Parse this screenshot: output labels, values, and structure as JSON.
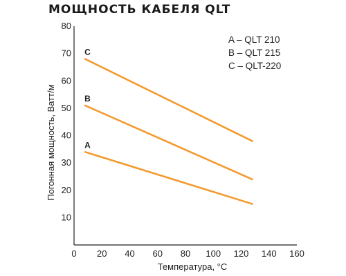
{
  "chart_data": {
    "type": "line",
    "title": "МОЩНОСТЬ КАБЕЛЯ QLT",
    "xlabel": "Температура, °C",
    "ylabel": "Погонная мощность, Ватт/м",
    "xlim": [
      0,
      160
    ],
    "ylim": [
      0,
      80
    ],
    "x_ticks": [
      0,
      20,
      40,
      60,
      80,
      100,
      120,
      140,
      160
    ],
    "y_ticks": [
      10,
      20,
      30,
      40,
      50,
      60,
      70,
      80
    ],
    "grid": false,
    "legend_position": "top-right",
    "legend": [
      "A – QLT 210",
      "B – QLT 215",
      "C – QLT-220"
    ],
    "line_color": "#F39A2E",
    "series": [
      {
        "name": "C",
        "x": [
          8,
          128
        ],
        "y": [
          68,
          38
        ]
      },
      {
        "name": "B",
        "x": [
          8,
          128
        ],
        "y": [
          51,
          24
        ]
      },
      {
        "name": "A",
        "x": [
          8,
          128
        ],
        "y": [
          34,
          15
        ]
      }
    ]
  }
}
